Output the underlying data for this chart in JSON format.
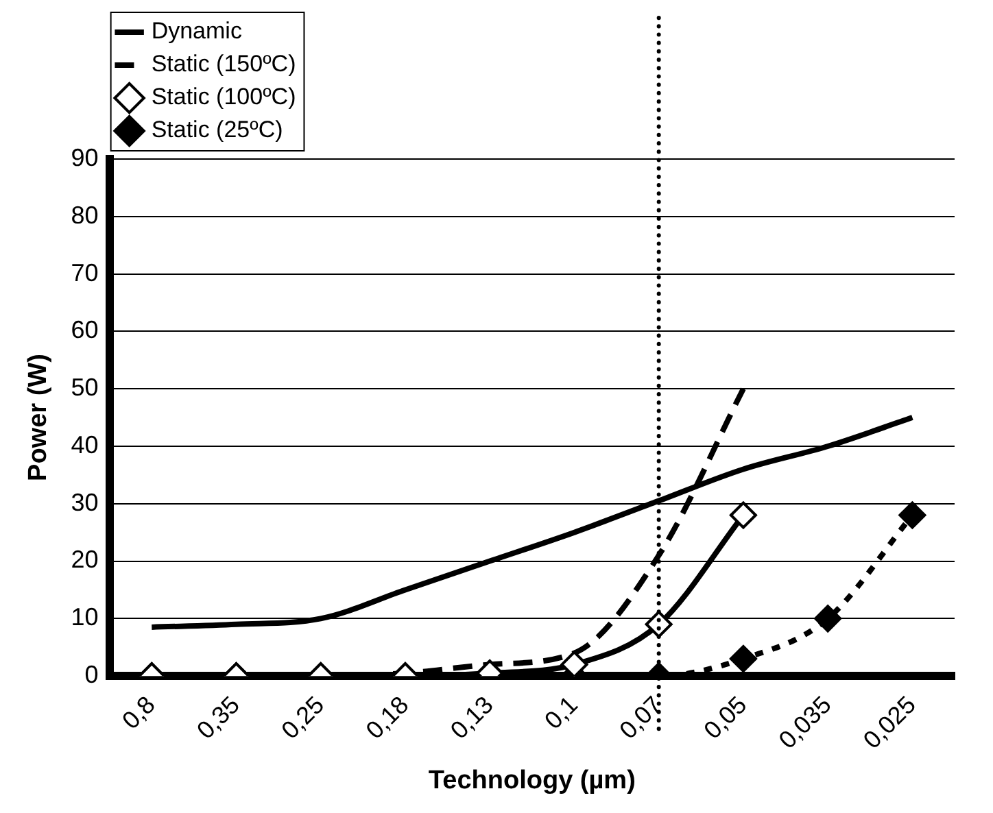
{
  "chart_data": {
    "type": "line",
    "xlabel": "Technology (µm)",
    "ylabel": "Power (W)",
    "categories": [
      "0,8",
      "0,35",
      "0,25",
      "0,18",
      "0,13",
      "0,1",
      "0,07",
      "0,05",
      "0,035",
      "0,025"
    ],
    "series": [
      {
        "name": "Dynamic",
        "color": "#000000",
        "line_style": "solid",
        "marker": "none",
        "values": [
          8.5,
          9,
          10,
          15,
          20,
          25,
          30.5,
          36,
          40,
          45
        ]
      },
      {
        "name": "Static (150ºC)",
        "color": "#000000",
        "line_style": "dashed",
        "marker": "none",
        "values": [
          0,
          0,
          0,
          0.5,
          2,
          4,
          21,
          50,
          null,
          null
        ]
      },
      {
        "name": "Static (100ºC)",
        "color": "#000000",
        "line_style": "solid",
        "marker": "diamond",
        "values": [
          0,
          0,
          0,
          0,
          0.5,
          2,
          9,
          28,
          null,
          null
        ]
      },
      {
        "name": "Static (25ºC)",
        "color": "#000000",
        "line_style": "dotted",
        "marker": "diamond",
        "values": [
          0,
          0,
          0,
          0,
          0,
          0,
          0,
          3,
          10,
          28
        ]
      }
    ],
    "ylim": [
      0,
      90
    ],
    "yticks": [
      0,
      10,
      20,
      30,
      40,
      50,
      60,
      70,
      80,
      90
    ],
    "grid": "y",
    "legend": "top left",
    "ref_lines": [
      {
        "axis": "x",
        "value": "0,07",
        "line_style": "dotted",
        "color": "#000000"
      }
    ]
  }
}
